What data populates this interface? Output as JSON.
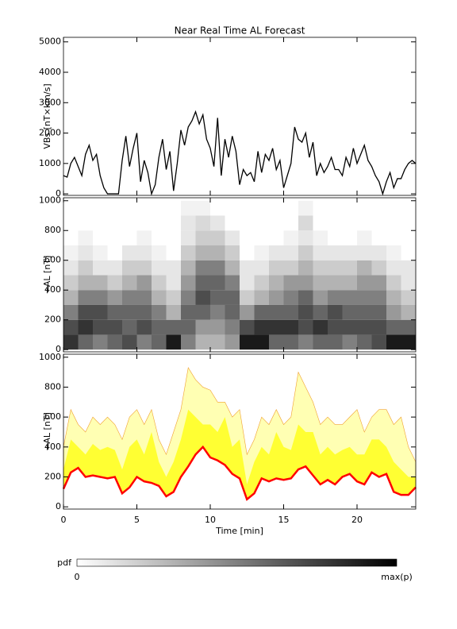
{
  "chart_data": [
    {
      "type": "line",
      "title": "Near Real Time AL Forecast",
      "ylabel": "VBs [nT×km/s]",
      "x": [
        0,
        0.25,
        0.5,
        0.75,
        1,
        1.25,
        1.5,
        1.75,
        2,
        2.25,
        2.5,
        2.75,
        3,
        3.25,
        3.5,
        3.75,
        4,
        4.25,
        4.5,
        4.75,
        5,
        5.25,
        5.5,
        5.75,
        6,
        6.25,
        6.5,
        6.75,
        7,
        7.25,
        7.5,
        7.75,
        8,
        8.25,
        8.5,
        8.75,
        9,
        9.25,
        9.5,
        9.75,
        10,
        10.25,
        10.5,
        10.75,
        11,
        11.25,
        11.5,
        11.75,
        12,
        12.25,
        12.5,
        12.75,
        13,
        13.25,
        13.5,
        13.75,
        14,
        14.25,
        14.5,
        14.75,
        15,
        15.25,
        15.5,
        15.75,
        16,
        16.25,
        16.5,
        16.75,
        17,
        17.25,
        17.5,
        17.75,
        18,
        18.25,
        18.5,
        18.75,
        19,
        19.25,
        19.5,
        19.75,
        20,
        20.25,
        20.5,
        20.75,
        21,
        21.25,
        21.5,
        21.75,
        22,
        22.25,
        22.5,
        22.75,
        23,
        23.25,
        23.5,
        23.75,
        24
      ],
      "values": [
        600,
        550,
        1000,
        1200,
        900,
        600,
        1300,
        1600,
        1100,
        1300,
        600,
        200,
        0,
        0,
        0,
        0,
        1100,
        1900,
        900,
        1500,
        2000,
        400,
        1100,
        700,
        0,
        300,
        1200,
        1800,
        800,
        1400,
        100,
        1000,
        2100,
        1600,
        2200,
        2400,
        2700,
        2300,
        2600,
        1800,
        1500,
        900,
        2500,
        600,
        1800,
        1200,
        1900,
        1400,
        300,
        800,
        600,
        700,
        400,
        1400,
        700,
        1300,
        1100,
        1500,
        800,
        1100,
        200,
        600,
        1000,
        2200,
        1800,
        1700,
        2000,
        1200,
        1700,
        600,
        1000,
        700,
        900,
        1200,
        800,
        800,
        600,
        1200,
        900,
        1500,
        1000,
        1300,
        1600,
        1100,
        900,
        600,
        400,
        0,
        400,
        700,
        200,
        500,
        500,
        800,
        1000,
        1100,
        1000
      ],
      "color": "#000000",
      "xlim": [
        0,
        24
      ],
      "ylim": [
        -50,
        5150
      ],
      "yticks": [
        0,
        1000,
        2000,
        3000,
        4000,
        5000
      ],
      "xticks": [
        0,
        5,
        10,
        15,
        20
      ]
    },
    {
      "type": "heatmap",
      "ylabel": "−AL [nT]",
      "x_edges": [
        0,
        1,
        2,
        3,
        4,
        5,
        6,
        7,
        8,
        9,
        10,
        11,
        12,
        13,
        14,
        15,
        16,
        17,
        18,
        19,
        20,
        21,
        22,
        23,
        24
      ],
      "y_edges": [
        0,
        100,
        200,
        300,
        400,
        500,
        600,
        700,
        800,
        900,
        1000
      ],
      "z": [
        [
          0.8,
          0.6,
          0.5,
          0.6,
          0.7,
          0.5,
          0.6,
          0.9,
          0.5,
          0.3,
          0.3,
          0.4,
          0.9,
          0.9,
          0.6,
          0.6,
          0.5,
          0.6,
          0.6,
          0.5,
          0.6,
          0.7,
          0.9,
          0.9
        ],
        [
          0.7,
          0.8,
          0.7,
          0.7,
          0.6,
          0.7,
          0.6,
          0.6,
          0.6,
          0.4,
          0.4,
          0.5,
          0.7,
          0.8,
          0.8,
          0.8,
          0.7,
          0.8,
          0.7,
          0.7,
          0.7,
          0.7,
          0.6,
          0.6
        ],
        [
          0.5,
          0.7,
          0.7,
          0.6,
          0.6,
          0.6,
          0.5,
          0.3,
          0.6,
          0.6,
          0.5,
          0.6,
          0.4,
          0.6,
          0.6,
          0.6,
          0.7,
          0.6,
          0.7,
          0.6,
          0.6,
          0.6,
          0.4,
          0.3
        ],
        [
          0.3,
          0.5,
          0.5,
          0.4,
          0.5,
          0.5,
          0.3,
          0.2,
          0.5,
          0.7,
          0.6,
          0.6,
          0.2,
          0.3,
          0.4,
          0.5,
          0.6,
          0.4,
          0.5,
          0.5,
          0.5,
          0.5,
          0.3,
          0.2
        ],
        [
          0.2,
          0.3,
          0.3,
          0.2,
          0.3,
          0.4,
          0.2,
          0.1,
          0.4,
          0.6,
          0.6,
          0.5,
          0.1,
          0.2,
          0.3,
          0.4,
          0.4,
          0.3,
          0.3,
          0.3,
          0.4,
          0.4,
          0.2,
          0.1
        ],
        [
          0.1,
          0.2,
          0.1,
          0.1,
          0.2,
          0.2,
          0.1,
          0.1,
          0.3,
          0.5,
          0.5,
          0.3,
          0.1,
          0.1,
          0.2,
          0.2,
          0.3,
          0.2,
          0.2,
          0.2,
          0.3,
          0.2,
          0.1,
          0.1
        ],
        [
          0.05,
          0.1,
          0.05,
          0,
          0.1,
          0.1,
          0.05,
          0,
          0.2,
          0.3,
          0.3,
          0.2,
          0,
          0.05,
          0.1,
          0.1,
          0.2,
          0.1,
          0.1,
          0.1,
          0.1,
          0.1,
          0.05,
          0
        ],
        [
          0,
          0.05,
          0,
          0,
          0,
          0.05,
          0,
          0,
          0.1,
          0.2,
          0.2,
          0.1,
          0,
          0,
          0,
          0.05,
          0.1,
          0.05,
          0,
          0,
          0.05,
          0,
          0,
          0
        ],
        [
          0,
          0,
          0,
          0,
          0,
          0,
          0,
          0,
          0.1,
          0.15,
          0.1,
          0,
          0,
          0,
          0,
          0,
          0.15,
          0,
          0,
          0,
          0,
          0,
          0,
          0
        ],
        [
          0,
          0,
          0,
          0,
          0,
          0,
          0,
          0,
          0.05,
          0.05,
          0,
          0,
          0,
          0,
          0,
          0,
          0.05,
          0,
          0,
          0,
          0,
          0,
          0,
          0
        ]
      ],
      "cmap": [
        "#ffffff",
        "#000000"
      ],
      "xlim": [
        0,
        24
      ],
      "ylim": [
        -15,
        1020
      ],
      "yticks": [
        0,
        200,
        400,
        600,
        800,
        1000
      ],
      "xticks": [
        0,
        5,
        10,
        15,
        20
      ],
      "colorbar": {
        "label": "pdf",
        "min_label": "0",
        "max_label": "max(p)"
      }
    },
    {
      "type": "band",
      "xlabel": "Time [min]",
      "ylabel": "−AL [nT]",
      "x": [
        0,
        0.5,
        1,
        1.5,
        2,
        2.5,
        3,
        3.5,
        4,
        4.5,
        5,
        5.5,
        6,
        6.5,
        7,
        7.5,
        8,
        8.5,
        9,
        9.5,
        10,
        10.5,
        11,
        11.5,
        12,
        12.5,
        13,
        13.5,
        14,
        14.5,
        15,
        15.5,
        16,
        16.5,
        17,
        17.5,
        18,
        18.5,
        19,
        19.5,
        20,
        20.5,
        21,
        21.5,
        22,
        22.5,
        23,
        23.5,
        24
      ],
      "series": [
        {
          "color": "#ffffb3",
          "edge_color": "#f0a030",
          "values": [
            400,
            650,
            550,
            500,
            600,
            550,
            600,
            550,
            450,
            600,
            650,
            550,
            650,
            450,
            350,
            500,
            650,
            930,
            850,
            800,
            780,
            700,
            700,
            600,
            650,
            350,
            450,
            600,
            550,
            650,
            550,
            600,
            900,
            800,
            700,
            550,
            600,
            550,
            550,
            600,
            650,
            500,
            600,
            650,
            650,
            550,
            600,
            400,
            300
          ]
        },
        {
          "color": "#ffff33",
          "values": [
            250,
            450,
            400,
            350,
            420,
            380,
            400,
            380,
            250,
            400,
            450,
            350,
            500,
            300,
            200,
            300,
            450,
            650,
            600,
            550,
            550,
            500,
            600,
            400,
            450,
            150,
            300,
            400,
            350,
            500,
            400,
            380,
            550,
            500,
            500,
            350,
            400,
            350,
            380,
            400,
            350,
            350,
            450,
            450,
            400,
            300,
            250,
            200,
            200
          ]
        },
        {
          "color": "#ff0000",
          "values": [
            120,
            230,
            260,
            200,
            210,
            200,
            190,
            200,
            90,
            130,
            200,
            170,
            160,
            140,
            70,
            100,
            200,
            270,
            350,
            400,
            330,
            310,
            280,
            220,
            190,
            50,
            90,
            190,
            170,
            190,
            180,
            190,
            250,
            270,
            210,
            150,
            180,
            150,
            200,
            220,
            170,
            150,
            230,
            200,
            220,
            100,
            80,
            80,
            130
          ]
        }
      ],
      "xlim": [
        0,
        24
      ],
      "ylim": [
        -15,
        1020
      ],
      "yticks": [
        0,
        200,
        400,
        600,
        800,
        1000
      ],
      "xticks": [
        0,
        5,
        10,
        15,
        20
      ]
    }
  ]
}
